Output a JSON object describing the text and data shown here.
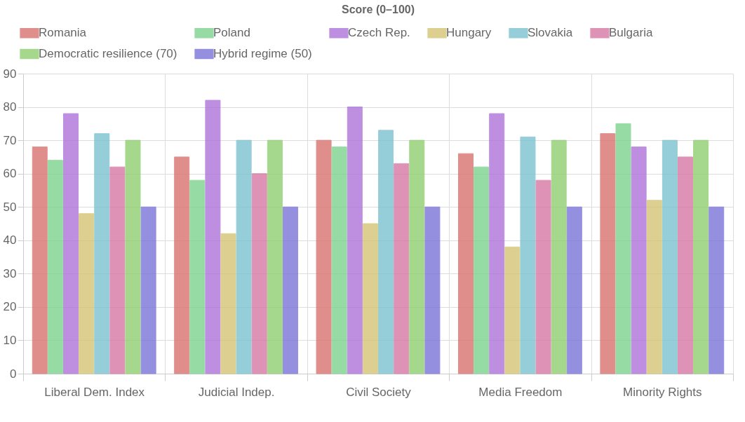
{
  "chart_data": {
    "type": "bar",
    "title": "Score (0–100)",
    "categories": [
      "Liberal Dem. Index",
      "Judicial Indep.",
      "Civil Society",
      "Media Freedom",
      "Minority Rights"
    ],
    "series": [
      {
        "name": "Romania",
        "color": "#d9736f",
        "values": [
          68,
          65,
          70,
          66,
          72
        ]
      },
      {
        "name": "Poland",
        "color": "#7dd38e",
        "values": [
          64,
          58,
          68,
          62,
          75
        ]
      },
      {
        "name": "Czech Rep.",
        "color": "#ae74d9",
        "values": [
          78,
          82,
          80,
          78,
          68
        ]
      },
      {
        "name": "Hungary",
        "color": "#d5c475",
        "values": [
          48,
          42,
          45,
          38,
          52
        ]
      },
      {
        "name": "Slovakia",
        "color": "#7bc2d0",
        "values": [
          72,
          70,
          73,
          71,
          70
        ]
      },
      {
        "name": "Bulgaria",
        "color": "#d679a4",
        "values": [
          62,
          60,
          63,
          58,
          65
        ]
      },
      {
        "name": "Democratic resilience (70)",
        "color": "#8fcf70",
        "values": [
          70,
          70,
          70,
          70,
          70
        ]
      },
      {
        "name": "Hybrid regime (50)",
        "color": "#7b74d9",
        "values": [
          50,
          50,
          50,
          50,
          50
        ]
      }
    ],
    "ylim": [
      0,
      90
    ],
    "yticks": [
      0,
      10,
      20,
      30,
      40,
      50,
      60,
      70,
      80,
      90
    ],
    "grid": true,
    "legend": "top"
  }
}
